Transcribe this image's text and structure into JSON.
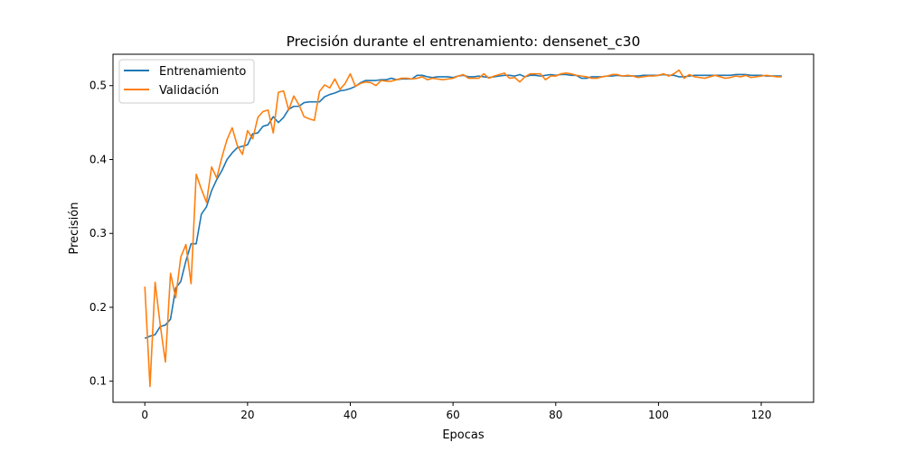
{
  "chart_data": {
    "type": "line",
    "title": "Precisión durante el entrenamiento: densenet_c30",
    "xlabel": "Epocas",
    "ylabel": "Precisión",
    "xlim": [
      -6.2,
      130.2
    ],
    "ylim": [
      0.0715,
      0.5425
    ],
    "xticks": [
      0,
      20,
      40,
      60,
      80,
      100,
      120
    ],
    "yticks": [
      0.1,
      0.2,
      0.3,
      0.4,
      0.5
    ],
    "legend": "upper-left",
    "grid": false,
    "series": [
      {
        "name": "Entrenamiento",
        "color": "#1f77b4",
        "values": [
          0.158,
          0.161,
          0.163,
          0.174,
          0.176,
          0.184,
          0.226,
          0.235,
          0.263,
          0.286,
          0.286,
          0.326,
          0.336,
          0.358,
          0.373,
          0.385,
          0.4,
          0.409,
          0.416,
          0.418,
          0.42,
          0.435,
          0.436,
          0.445,
          0.447,
          0.458,
          0.45,
          0.457,
          0.468,
          0.472,
          0.472,
          0.477,
          0.478,
          0.478,
          0.478,
          0.485,
          0.488,
          0.49,
          0.493,
          0.494,
          0.496,
          0.499,
          0.504,
          0.507,
          0.507,
          0.507,
          0.508,
          0.508,
          0.51,
          0.508,
          0.509,
          0.509,
          0.509,
          0.514,
          0.514,
          0.512,
          0.511,
          0.512,
          0.512,
          0.512,
          0.511,
          0.513,
          0.514,
          0.512,
          0.512,
          0.513,
          0.512,
          0.511,
          0.512,
          0.513,
          0.514,
          0.514,
          0.513,
          0.515,
          0.512,
          0.514,
          0.514,
          0.513,
          0.514,
          0.515,
          0.514,
          0.515,
          0.515,
          0.514,
          0.514,
          0.51,
          0.51,
          0.512,
          0.512,
          0.512,
          0.513,
          0.513,
          0.514,
          0.513,
          0.513,
          0.513,
          0.513,
          0.514,
          0.514,
          0.514,
          0.514,
          0.515,
          0.514,
          0.514,
          0.512,
          0.512,
          0.513,
          0.514,
          0.514,
          0.514,
          0.514,
          0.514,
          0.514,
          0.514,
          0.514,
          0.515,
          0.515,
          0.515,
          0.514,
          0.514,
          0.514,
          0.513,
          0.513,
          0.513,
          0.513
        ]
      },
      {
        "name": "Validación",
        "color": "#ff7f0e",
        "values": [
          0.228,
          0.093,
          0.234,
          0.176,
          0.126,
          0.246,
          0.213,
          0.268,
          0.285,
          0.232,
          0.38,
          0.36,
          0.342,
          0.39,
          0.375,
          0.403,
          0.427,
          0.443,
          0.419,
          0.407,
          0.439,
          0.428,
          0.457,
          0.465,
          0.467,
          0.436,
          0.491,
          0.493,
          0.467,
          0.486,
          0.474,
          0.458,
          0.455,
          0.453,
          0.492,
          0.501,
          0.497,
          0.509,
          0.495,
          0.503,
          0.516,
          0.499,
          0.503,
          0.505,
          0.504,
          0.5,
          0.507,
          0.506,
          0.506,
          0.508,
          0.51,
          0.51,
          0.509,
          0.51,
          0.512,
          0.508,
          0.51,
          0.509,
          0.508,
          0.509,
          0.51,
          0.513,
          0.515,
          0.51,
          0.51,
          0.51,
          0.516,
          0.51,
          0.513,
          0.515,
          0.517,
          0.51,
          0.511,
          0.505,
          0.512,
          0.516,
          0.516,
          0.516,
          0.508,
          0.513,
          0.513,
          0.516,
          0.517,
          0.516,
          0.514,
          0.513,
          0.512,
          0.51,
          0.51,
          0.512,
          0.513,
          0.515,
          0.515,
          0.513,
          0.514,
          0.513,
          0.511,
          0.512,
          0.513,
          0.513,
          0.514,
          0.516,
          0.513,
          0.516,
          0.521,
          0.51,
          0.515,
          0.512,
          0.511,
          0.51,
          0.512,
          0.514,
          0.512,
          0.51,
          0.511,
          0.513,
          0.512,
          0.514,
          0.511,
          0.512,
          0.513,
          0.514,
          0.513,
          0.512,
          0.512
        ]
      }
    ]
  }
}
